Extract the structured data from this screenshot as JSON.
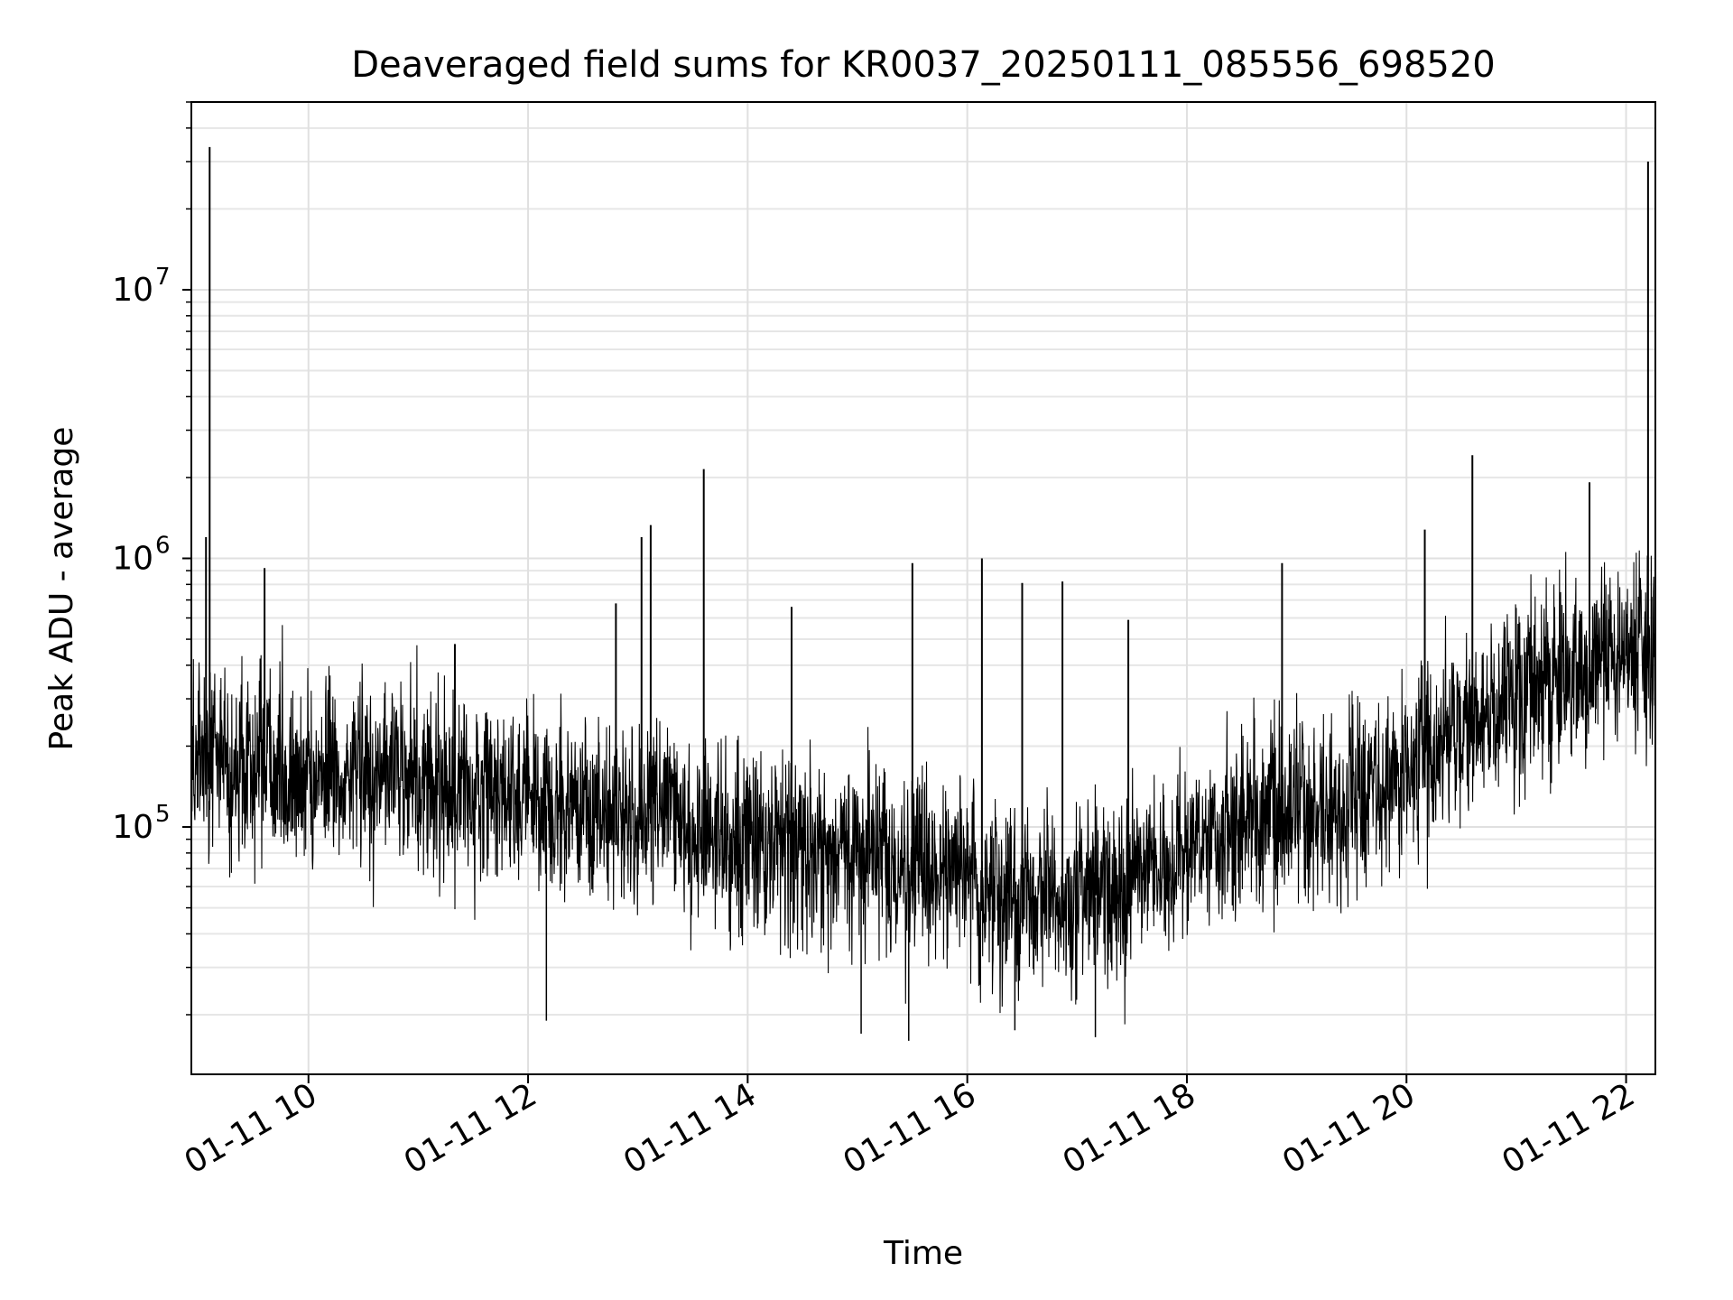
{
  "chart_data": {
    "type": "line",
    "title": "Deaveraged field sums for KR0037_20250111_085556_698520",
    "xlabel": "Time",
    "ylabel": "Peak ADU - average",
    "y_scale": "log",
    "ylim": [
      12000,
      50000000
    ],
    "xlim": [
      "2025-01-11 08:56",
      "2025-01-11 22:16"
    ],
    "grid": true,
    "grid_minor_y": true,
    "line_color": "#000000",
    "x_ticks": [
      {
        "t": "2025-01-11 10:00",
        "label": "01-11 10"
      },
      {
        "t": "2025-01-11 12:00",
        "label": "01-11 12"
      },
      {
        "t": "2025-01-11 14:00",
        "label": "01-11 14"
      },
      {
        "t": "2025-01-11 16:00",
        "label": "01-11 16"
      },
      {
        "t": "2025-01-11 18:00",
        "label": "01-11 18"
      },
      {
        "t": "2025-01-11 20:00",
        "label": "01-11 20"
      },
      {
        "t": "2025-01-11 22:00",
        "label": "01-11 22"
      }
    ],
    "y_ticks": [
      {
        "v": 100000,
        "base": "10",
        "exp": "5"
      },
      {
        "v": 1000000,
        "base": "10",
        "exp": "6"
      },
      {
        "v": 10000000,
        "base": "10",
        "exp": "7"
      }
    ],
    "series": [
      {
        "x": [
          "2025-01-11 08:56",
          "2025-01-11 09:06",
          "2025-01-11 09:20",
          "2025-01-11 09:40",
          "2025-01-11 10:00",
          "2025-01-11 10:30",
          "2025-01-11 11:00",
          "2025-01-11 11:30",
          "2025-01-11 12:00",
          "2025-01-11 12:30",
          "2025-01-11 13:00",
          "2025-01-11 13:10",
          "2025-01-11 13:30",
          "2025-01-11 14:00",
          "2025-01-11 14:30",
          "2025-01-11 15:00",
          "2025-01-11 15:30",
          "2025-01-11 16:00",
          "2025-01-11 16:30",
          "2025-01-11 17:00",
          "2025-01-11 17:30",
          "2025-01-11 18:00",
          "2025-01-11 18:30",
          "2025-01-11 19:00",
          "2025-01-11 19:30",
          "2025-01-11 20:00",
          "2025-01-11 20:30",
          "2025-01-11 21:00",
          "2025-01-11 21:30",
          "2025-01-11 22:00",
          "2025-01-11 22:16"
        ],
        "y": [
          190000,
          180000,
          170000,
          165000,
          160000,
          155000,
          150000,
          140000,
          125000,
          110000,
          105000,
          140000,
          95000,
          90000,
          85000,
          78000,
          72000,
          64000,
          55000,
          52000,
          60000,
          82000,
          105000,
          120000,
          115000,
          150000,
          240000,
          300000,
          380000,
          450000,
          500000
        ]
      }
    ],
    "spikes": [
      {
        "x": "2025-01-11 09:06",
        "y": 34000000
      },
      {
        "x": "2025-01-11 09:04",
        "y": 1200000
      },
      {
        "x": "2025-01-11 09:36",
        "y": 920000
      },
      {
        "x": "2025-01-11 11:20",
        "y": 480000
      },
      {
        "x": "2025-01-11 12:48",
        "y": 680000
      },
      {
        "x": "2025-01-11 13:02",
        "y": 1200000
      },
      {
        "x": "2025-01-11 13:07",
        "y": 1330000
      },
      {
        "x": "2025-01-11 13:36",
        "y": 2150000
      },
      {
        "x": "2025-01-11 14:24",
        "y": 660000
      },
      {
        "x": "2025-01-11 15:30",
        "y": 960000
      },
      {
        "x": "2025-01-11 16:08",
        "y": 1000000
      },
      {
        "x": "2025-01-11 16:30",
        "y": 810000
      },
      {
        "x": "2025-01-11 16:52",
        "y": 820000
      },
      {
        "x": "2025-01-11 17:28",
        "y": 590000
      },
      {
        "x": "2025-01-11 18:52",
        "y": 960000
      },
      {
        "x": "2025-01-11 20:10",
        "y": 1280000
      },
      {
        "x": "2025-01-11 20:36",
        "y": 2420000
      },
      {
        "x": "2025-01-11 21:40",
        "y": 1920000
      },
      {
        "x": "2025-01-11 22:12",
        "y": 30000000
      }
    ],
    "dips": [
      {
        "x": "2025-01-11 12:10",
        "y": 19000
      },
      {
        "x": "2025-01-11 15:02",
        "y": 17000
      },
      {
        "x": "2025-01-11 15:28",
        "y": 16000
      },
      {
        "x": "2025-01-11 16:26",
        "y": 17500
      },
      {
        "x": "2025-01-11 17:10",
        "y": 16500
      }
    ]
  }
}
